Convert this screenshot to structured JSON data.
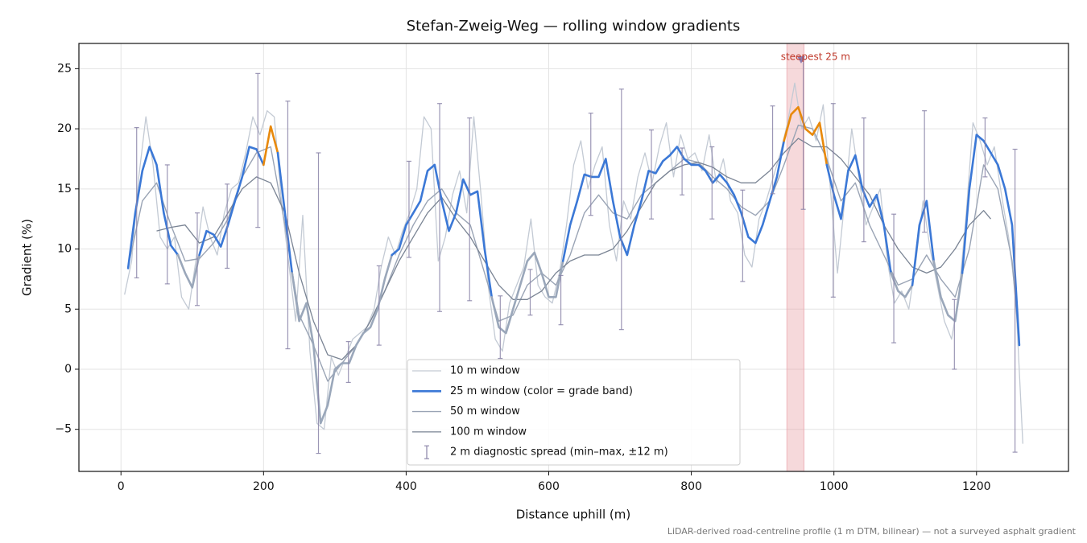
{
  "chart_data": {
    "type": "line",
    "title": "Stefan-Zweig-Weg — rolling window gradients",
    "xlabel": "Distance uphill (m)",
    "ylabel": "Gradient (%)",
    "footnote": "LiDAR-derived road-centreline profile (1 m DTM, bilinear) — not a surveyed asphalt gradient",
    "xlim": [
      -59,
      1329
    ],
    "ylim": [
      -8.5,
      27.1
    ],
    "xticks": [
      0,
      200,
      400,
      600,
      800,
      1000,
      1200
    ],
    "yticks": [
      {
        "value": -5,
        "label": "−5"
      },
      0,
      5,
      10,
      15,
      20,
      25
    ],
    "grid": true,
    "legend": "lower center",
    "series": [
      {
        "name": "10 m window",
        "color": "#c3cad4",
        "x": [
          5,
          15,
          25,
          35,
          45,
          55,
          65,
          75,
          85,
          95,
          105,
          115,
          125,
          135,
          145,
          155,
          165,
          175,
          185,
          195,
          205,
          215,
          225,
          235,
          245,
          255,
          265,
          275,
          285,
          295,
          305,
          315,
          325,
          335,
          345,
          355,
          365,
          375,
          385,
          395,
          405,
          415,
          425,
          435,
          445,
          455,
          465,
          475,
          485,
          495,
          505,
          515,
          525,
          535,
          545,
          555,
          565,
          575,
          585,
          595,
          605,
          615,
          625,
          635,
          645,
          655,
          665,
          675,
          685,
          695,
          705,
          715,
          725,
          735,
          745,
          755,
          765,
          775,
          785,
          795,
          805,
          815,
          825,
          835,
          845,
          855,
          865,
          875,
          885,
          895,
          905,
          915,
          925,
          935,
          945,
          955,
          965,
          975,
          985,
          995,
          1005,
          1015,
          1025,
          1035,
          1045,
          1055,
          1065,
          1075,
          1085,
          1095,
          1105,
          1115,
          1125,
          1135,
          1145,
          1155,
          1165,
          1175,
          1185,
          1195,
          1205,
          1215,
          1225,
          1235,
          1245,
          1255,
          1265
        ],
        "values": [
          6.2,
          9,
          16,
          21,
          17,
          11,
          10,
          11,
          6,
          5,
          9,
          13.5,
          11,
          9.5,
          13,
          15,
          15.5,
          18,
          21,
          19.5,
          21.5,
          21,
          14,
          9,
          4,
          12.8,
          1.5,
          -4.5,
          -5,
          1,
          -0.5,
          1,
          2.5,
          3,
          3.5,
          5,
          8.5,
          11,
          9.5,
          11.5,
          13,
          15,
          21,
          20,
          9,
          11,
          14.5,
          16.5,
          13,
          21,
          14.5,
          7,
          2.5,
          1.5,
          5.5,
          7,
          8.5,
          12.5,
          7,
          6,
          5.5,
          8,
          12,
          17,
          19,
          15,
          17,
          18.5,
          12,
          9,
          14,
          12.5,
          16,
          18,
          15.5,
          18.5,
          20.5,
          16,
          19.5,
          17.5,
          18,
          16.5,
          19.5,
          15.5,
          17.5,
          14,
          13,
          9.5,
          8.5,
          12.5,
          14,
          16,
          18,
          20.5,
          23.8,
          20,
          21,
          19,
          22,
          15,
          8,
          14,
          20,
          16,
          12,
          13.5,
          15,
          9,
          5.5,
          6.5,
          5,
          9,
          14,
          10,
          7,
          4,
          2.5,
          6,
          12.5,
          20.5,
          19,
          17,
          18.5,
          14.5,
          11,
          6,
          -6.2
        ]
      },
      {
        "name": "25 m window (color = grade band)",
        "color": "#3b78d6",
        "band_edges": [
          10,
          20
        ],
        "band_colors": [
          "#9aa7ba",
          "#3b78d6",
          "#e8890c"
        ],
        "x": [
          10,
          20,
          30,
          40,
          50,
          60,
          70,
          80,
          90,
          100,
          110,
          120,
          130,
          140,
          150,
          160,
          170,
          180,
          190,
          200,
          210,
          220,
          230,
          240,
          250,
          260,
          270,
          280,
          290,
          300,
          310,
          320,
          330,
          340,
          350,
          360,
          370,
          380,
          390,
          400,
          410,
          420,
          430,
          440,
          450,
          460,
          470,
          480,
          490,
          500,
          510,
          520,
          530,
          540,
          550,
          560,
          570,
          580,
          590,
          600,
          610,
          620,
          630,
          640,
          650,
          660,
          670,
          680,
          690,
          700,
          710,
          720,
          730,
          740,
          750,
          760,
          770,
          780,
          790,
          800,
          810,
          820,
          830,
          840,
          850,
          860,
          870,
          880,
          890,
          900,
          910,
          920,
          930,
          940,
          950,
          960,
          970,
          980,
          990,
          1000,
          1010,
          1020,
          1030,
          1040,
          1050,
          1060,
          1070,
          1080,
          1090,
          1100,
          1110,
          1120,
          1130,
          1140,
          1150,
          1160,
          1170,
          1180,
          1190,
          1200,
          1210,
          1220,
          1230,
          1240,
          1250,
          1260
        ],
        "values": [
          8.4,
          13,
          16.5,
          18.5,
          17,
          13,
          10.3,
          9.5,
          8,
          6.8,
          9.5,
          11.5,
          11.2,
          10.2,
          12,
          14,
          16,
          18.5,
          18.3,
          17,
          20.2,
          18,
          13,
          8,
          4,
          5.5,
          2,
          -4.5,
          -3,
          0,
          0.5,
          0.5,
          2,
          3,
          3.5,
          5,
          7.5,
          9.5,
          10,
          12,
          13,
          14,
          16.5,
          17,
          14,
          11.5,
          13,
          15.8,
          14.5,
          14.8,
          10,
          6,
          3.5,
          3,
          5,
          7,
          9,
          9.7,
          8,
          6,
          6,
          9,
          12,
          14,
          16.2,
          16,
          16,
          17.5,
          14,
          11,
          9.5,
          12,
          14,
          16.5,
          16.3,
          17.3,
          17.8,
          18.5,
          17.5,
          17,
          17,
          16.5,
          15.5,
          16.2,
          15.5,
          14.5,
          13,
          11,
          10.5,
          12,
          14,
          16,
          19,
          21.2,
          21.8,
          20,
          19.5,
          20.5,
          17,
          14.5,
          12.5,
          16.5,
          17.8,
          15,
          13.5,
          14.5,
          12,
          8,
          6.5,
          6,
          7,
          12,
          14,
          9,
          6,
          4.5,
          4,
          8,
          15,
          19.5,
          19,
          18,
          17,
          15,
          12,
          2
        ]
      },
      {
        "name": "50 m window",
        "color": "#9aa4b5",
        "x": [
          10,
          30,
          50,
          70,
          90,
          110,
          130,
          150,
          170,
          190,
          210,
          230,
          250,
          270,
          290,
          310,
          330,
          350,
          370,
          390,
          410,
          430,
          450,
          470,
          490,
          510,
          530,
          550,
          570,
          590,
          610,
          630,
          650,
          670,
          690,
          710,
          730,
          750,
          770,
          790,
          810,
          830,
          850,
          870,
          890,
          910,
          930,
          950,
          970,
          990,
          1010,
          1030,
          1050,
          1070,
          1090,
          1110,
          1130,
          1150,
          1170,
          1190,
          1210,
          1230,
          1250,
          1260
        ],
        "values": [
          8.5,
          14,
          15.5,
          12,
          9,
          9.2,
          10.5,
          12.5,
          16,
          18,
          18.5,
          12,
          4.5,
          2,
          -1,
          0.5,
          2,
          4,
          6.5,
          9.5,
          12,
          14,
          15,
          13,
          12,
          8,
          4,
          4.5,
          7,
          8,
          7,
          9.5,
          13,
          14.5,
          13,
          12.5,
          14.5,
          15.5,
          16.5,
          17.5,
          17.2,
          16,
          15,
          13.5,
          12.8,
          14,
          17,
          20.3,
          20,
          17.5,
          14,
          15.5,
          12,
          9.5,
          7,
          7.5,
          9.5,
          7.5,
          6,
          10,
          17,
          15,
          9,
          2
        ]
      },
      {
        "name": "100 m window",
        "color": "#7a8494",
        "x": [
          50,
          70,
          90,
          110,
          130,
          150,
          170,
          190,
          210,
          230,
          250,
          270,
          290,
          310,
          330,
          350,
          370,
          390,
          410,
          430,
          450,
          470,
          490,
          510,
          530,
          550,
          570,
          590,
          610,
          630,
          650,
          670,
          690,
          710,
          730,
          750,
          770,
          790,
          810,
          830,
          850,
          870,
          890,
          910,
          930,
          950,
          970,
          990,
          1010,
          1030,
          1050,
          1070,
          1090,
          1110,
          1130,
          1150,
          1170,
          1190,
          1210,
          1220
        ],
        "values": [
          11.5,
          11.8,
          12,
          10.5,
          11,
          13,
          15,
          16,
          15.5,
          13,
          8,
          4,
          1.2,
          0.8,
          2,
          4,
          6.5,
          9,
          11,
          13,
          14.3,
          12.5,
          11,
          9,
          7,
          5.8,
          5.8,
          6.5,
          8,
          9,
          9.5,
          9.5,
          10,
          11.5,
          13.5,
          15.5,
          16.5,
          17,
          17.2,
          16.8,
          16,
          15.5,
          15.5,
          16.5,
          18,
          19.2,
          18.5,
          18.5,
          17.5,
          16,
          14.5,
          12,
          10,
          8.5,
          8,
          8.5,
          10,
          12,
          13.2,
          12.5
        ]
      }
    ],
    "errorbars": {
      "name": "2 m diagnostic spread (min–max, ±12 m)",
      "color": "#8a84a8",
      "x": [
        22,
        65,
        107,
        149,
        192,
        234,
        277,
        319,
        362,
        404,
        447,
        489,
        532,
        574,
        617,
        659,
        702,
        744,
        787,
        829,
        872,
        914,
        957,
        999,
        1042,
        1084,
        1127,
        1169,
        1212,
        1254
      ],
      "low": [
        7.6,
        7.1,
        5.3,
        8.4,
        11.8,
        1.7,
        -7.0,
        -1.1,
        2.0,
        9.3,
        4.8,
        5.7,
        0.9,
        4.5,
        3.7,
        12.8,
        3.3,
        12.5,
        14.5,
        12.5,
        7.3,
        14.6,
        13.3,
        6.0,
        10.6,
        2.2,
        11.4,
        0.0,
        16.0,
        -6.9
      ],
      "high": [
        20.1,
        17.0,
        13.0,
        15.4,
        24.6,
        22.3,
        18.0,
        2.3,
        8.6,
        17.3,
        22.1,
        20.9,
        6.1,
        8.3,
        7.8,
        21.3,
        23.3,
        19.9,
        18.4,
        18.5,
        14.9,
        21.9,
        25.8,
        22.1,
        20.9,
        12.9,
        21.5,
        5.8,
        20.9,
        18.3
      ]
    },
    "annotation": {
      "text": "steepest 25 m",
      "span": [
        934,
        958
      ],
      "x": 954,
      "y": 25.7,
      "color": "#c0392b",
      "span_color": "#e8a0a6",
      "marker_color": "#8b7bb0"
    }
  }
}
